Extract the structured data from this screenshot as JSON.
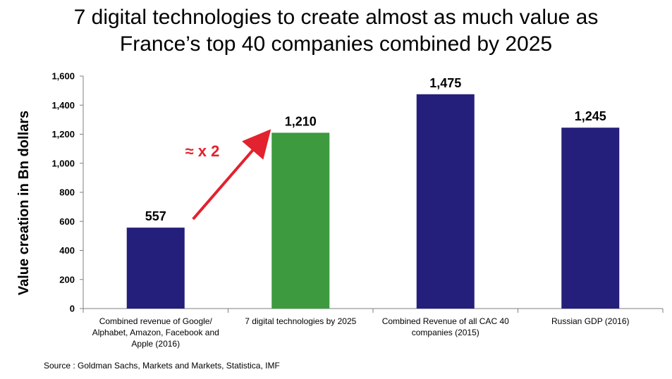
{
  "title_line1": "7 digital technologies to create almost as much value as",
  "title_line2": "France’s top 40 companies combined by 2025",
  "source": "Source : Goldman Sachs, Markets and Markets, Statistica, IMF",
  "annotation_text": "≈ x 2",
  "colors": {
    "navy": "#241f7a",
    "green": "#3d9a3f",
    "arrow": "#e2222e",
    "axis": "#7f7f7f"
  },
  "chart_data": {
    "type": "bar",
    "ylabel": "Value creation in Bn dollars",
    "ylim": [
      0,
      1600
    ],
    "yticks": [
      "0",
      "200",
      "400",
      "600",
      "800",
      "1,000",
      "1,200",
      "1,400",
      "1,600"
    ],
    "yticks_values": [
      0,
      200,
      400,
      600,
      800,
      1000,
      1200,
      1400,
      1600
    ],
    "categories": [
      [
        "Combined revenue of Google/",
        "Alphabet, Amazon, Facebook and",
        "Apple (2016)"
      ],
      [
        "7 digital technologies by 2025"
      ],
      [
        "Combined Revenue of all CAC 40",
        "companies (2015)"
      ],
      [
        "Russian GDP (2016)"
      ]
    ],
    "values": [
      557,
      1210,
      1475,
      1245
    ],
    "value_labels": [
      "557",
      "1,210",
      "1,475",
      "1,245"
    ],
    "bar_colors": [
      "#241f7a",
      "#3d9a3f",
      "#241f7a",
      "#241f7a"
    ]
  }
}
